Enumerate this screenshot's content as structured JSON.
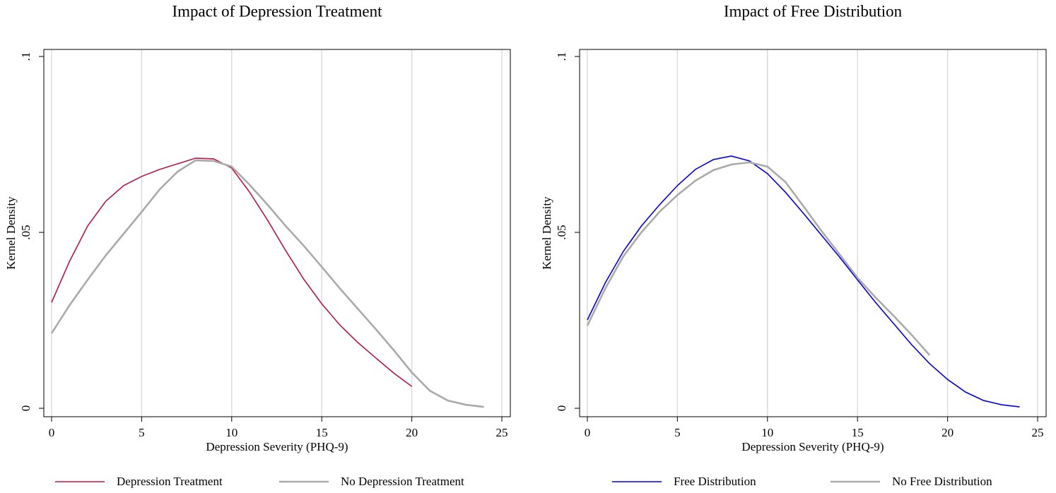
{
  "chart_data": [
    {
      "type": "line",
      "title": "Impact of Depression Treatment",
      "x_label": "Depression Severity (PHQ-9)",
      "y_label": "Kernel Density",
      "x": [
        0,
        1,
        2,
        3,
        4,
        5,
        6,
        7,
        8,
        9,
        10,
        11,
        12,
        13,
        14,
        15,
        16,
        17,
        18,
        19,
        20,
        21,
        22,
        23,
        24
      ],
      "series": [
        {
          "name": "Depression Treatment",
          "color": "#b8173f",
          "values": [
            0.0301,
            0.0418,
            0.0518,
            0.0588,
            0.0633,
            0.0659,
            0.0679,
            0.0695,
            0.0711,
            0.0709,
            0.0683,
            0.0614,
            0.0534,
            0.0448,
            0.0367,
            0.0297,
            0.0237,
            0.0187,
            0.0143,
            0.01,
            0.0062,
            null,
            null,
            null,
            null
          ]
        },
        {
          "name": "No Depression Treatment",
          "color": "#aaaaaa",
          "values": [
            0.0213,
            0.0293,
            0.0365,
            0.0434,
            0.0496,
            0.0558,
            0.0622,
            0.0673,
            0.0705,
            0.0703,
            0.0687,
            0.0635,
            0.0578,
            0.0518,
            0.0462,
            0.0402,
            0.0341,
            0.0283,
            0.0225,
            0.0165,
            0.0102,
            0.005,
            0.0022,
            0.001,
            0.0004
          ]
        }
      ],
      "xlim": [
        -0.43,
        25.47
      ],
      "xticks": [
        0,
        5,
        10,
        15,
        20,
        25
      ],
      "ylim": [
        -0.0024,
        0.102
      ],
      "yticks": [
        0,
        {
          "value": 0.05,
          "label": ".05"
        },
        {
          "value": 0.1,
          "label": ".1"
        }
      ],
      "grid": "x",
      "legend": "bottom"
    },
    {
      "type": "line",
      "title": "Impact of Free Distribution",
      "x_label": "Depression Severity (PHQ-9)",
      "y_label": "Kernel Density",
      "x": [
        0,
        1,
        2,
        3,
        4,
        5,
        6,
        7,
        8,
        9,
        10,
        11,
        12,
        13,
        14,
        15,
        16,
        17,
        18,
        19,
        20,
        21,
        22,
        23,
        24
      ],
      "series": [
        {
          "name": "Free Distribution",
          "color": "#0000e0",
          "values": [
            0.0251,
            0.0357,
            0.0446,
            0.0518,
            0.0578,
            0.0633,
            0.0679,
            0.0707,
            0.0717,
            0.0703,
            0.0667,
            0.0614,
            0.0554,
            0.0492,
            0.043,
            0.0365,
            0.0301,
            0.0241,
            0.0181,
            0.0127,
            0.0082,
            0.0046,
            0.0022,
            0.001,
            0.0004
          ]
        },
        {
          "name": "No Free Distribution",
          "color": "#aaaaaa",
          "values": [
            0.0235,
            0.0341,
            0.0432,
            0.05,
            0.0558,
            0.0606,
            0.0647,
            0.0677,
            0.0693,
            0.0699,
            0.0687,
            0.0643,
            0.0574,
            0.0504,
            0.0438,
            0.0371,
            0.0315,
            0.0263,
            0.0209,
            0.0151,
            null,
            null,
            null,
            null,
            null
          ]
        }
      ],
      "xlim": [
        -0.43,
        25.47
      ],
      "xticks": [
        0,
        5,
        10,
        15,
        20,
        25
      ],
      "ylim": [
        -0.0024,
        0.102
      ],
      "yticks": [
        0,
        {
          "value": 0.05,
          "label": ".05"
        },
        {
          "value": 0.1,
          "label": ".1"
        }
      ],
      "grid": "x",
      "legend": "bottom"
    }
  ]
}
